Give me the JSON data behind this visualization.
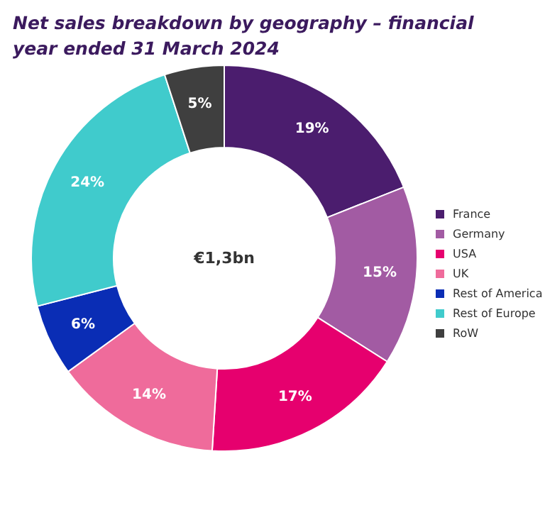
{
  "chart_data": {
    "type": "donut",
    "title": "Net sales breakdown by geography – financial year ended 31 March 2024",
    "categories": [
      "France",
      "Germany",
      "USA",
      "UK",
      "Rest of America",
      "Rest of Europe",
      "RoW"
    ],
    "values": [
      19,
      15,
      17,
      14,
      6,
      24,
      5
    ],
    "value_labels": [
      "19%",
      "15%",
      "17%",
      "14%",
      "6%",
      "24%",
      "5%"
    ],
    "colors": [
      "#4b1d6e",
      "#a25ba3",
      "#e6006e",
      "#ef6b9b",
      "#0a2db5",
      "#40cbcc",
      "#3f3f3f"
    ],
    "annotations": [
      "€1,3bn"
    ],
    "legend": "right"
  }
}
